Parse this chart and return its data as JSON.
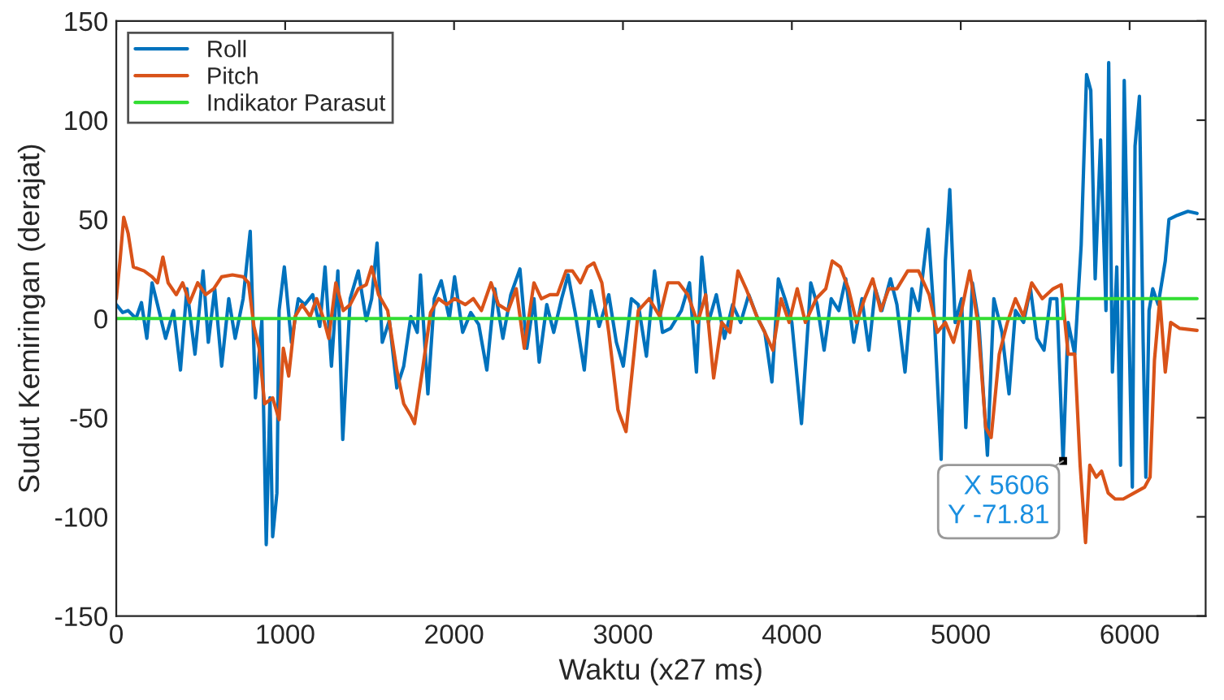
{
  "chart_data": {
    "type": "line",
    "xlabel": "Waktu (x27 ms)",
    "ylabel": "Sudut Kemiringan (derajat)",
    "xlim": [
      0,
      6450
    ],
    "ylim": [
      -150,
      150
    ],
    "xticks": [
      0,
      1000,
      2000,
      3000,
      4000,
      5000,
      6000
    ],
    "yticks": [
      -150,
      -100,
      -50,
      0,
      50,
      100,
      150
    ],
    "grid": false,
    "legend": "top left",
    "marker": "none",
    "line_style": "solid",
    "series": [
      {
        "name": "Roll",
        "color": "#0072bd",
        "x": [
          0,
          38,
          70,
          117,
          149,
          181,
          212,
          244,
          292,
          339,
          380,
          418,
          466,
          514,
          545,
          583,
          624,
          666,
          704,
          751,
          793,
          824,
          862,
          888,
          910,
          926,
          951,
          964,
          995,
          1037,
          1078,
          1116,
          1163,
          1205,
          1236,
          1274,
          1312,
          1341,
          1385,
          1433,
          1480,
          1512,
          1544,
          1575,
          1617,
          1661,
          1702,
          1744,
          1782,
          1801,
          1845,
          1883,
          1924,
          1972,
          2003,
          2051,
          2099,
          2146,
          2194,
          2241,
          2289,
          2336,
          2390,
          2431,
          2473,
          2504,
          2549,
          2590,
          2637,
          2675,
          2717,
          2771,
          2812,
          2859,
          2916,
          2961,
          3002,
          3050,
          3091,
          3139,
          3187,
          3234,
          3282,
          3346,
          3394,
          3435,
          3467,
          3506,
          3553,
          3601,
          3649,
          3697,
          3745,
          3793,
          3840,
          3882,
          3920,
          3959,
          4000,
          4057,
          4112,
          4150,
          4191,
          4233,
          4278,
          4319,
          4367,
          4415,
          4456,
          4494,
          4533,
          4584,
          4622,
          4670,
          4711,
          4750,
          4807,
          4845,
          4884,
          4909,
          4935,
          4967,
          5005,
          5030,
          5069,
          5107,
          5158,
          5196,
          5244,
          5286,
          5324,
          5372,
          5413,
          5451,
          5493,
          5531,
          5569,
          5606,
          5636,
          5675,
          5713,
          5745,
          5770,
          5796,
          5828,
          5860,
          5876,
          5898,
          5924,
          5946,
          5968,
          5994,
          6016,
          6032,
          6058,
          6080,
          6096,
          6115,
          6137,
          6169,
          6211,
          6233,
          6281,
          6345,
          6399
        ],
        "values": [
          7,
          3,
          4,
          0,
          8,
          -10,
          18,
          7,
          -10,
          4,
          -26,
          15,
          -18,
          24,
          -12,
          15,
          -24,
          10,
          -10,
          10,
          44,
          -40,
          -1,
          -114,
          -40,
          -110,
          -88,
          4,
          26,
          -12,
          10,
          7,
          12,
          -4,
          26,
          -24,
          24,
          -61,
          10,
          24,
          -1,
          10,
          38,
          -12,
          -1,
          -35,
          -24,
          1,
          -7,
          22,
          -38,
          10,
          19,
          0,
          21,
          -7,
          3,
          -3,
          -26,
          15,
          -10,
          12,
          25,
          -15,
          10,
          -22,
          7,
          -7,
          10,
          22,
          3,
          -26,
          14,
          -4,
          12,
          -12,
          -24,
          10,
          7,
          -19,
          24,
          -7,
          -5,
          4,
          18,
          -27,
          31,
          -2,
          12,
          -10,
          7,
          -2,
          12,
          1,
          -7,
          -32,
          20,
          10,
          -2,
          -53,
          18,
          7,
          -16,
          10,
          4,
          20,
          -12,
          10,
          -16,
          15,
          4,
          20,
          7,
          -27,
          15,
          4,
          45,
          -2,
          -71,
          29,
          65,
          -2,
          10,
          -55,
          18,
          -2,
          -69,
          10,
          -7,
          -38,
          4,
          -2,
          15,
          -10,
          -16,
          10,
          10,
          -71.81,
          -2,
          -18,
          37,
          123,
          115,
          20,
          90,
          4,
          129,
          -27,
          26,
          -74,
          120,
          4,
          -85,
          87,
          112,
          -12,
          -80,
          4,
          15,
          7,
          29,
          50,
          52,
          54,
          53
        ]
      },
      {
        "name": "Pitch",
        "color": "#d95319",
        "x": [
          0,
          22,
          44,
          70,
          101,
          165,
          212,
          244,
          276,
          307,
          355,
          393,
          434,
          482,
          529,
          577,
          624,
          688,
          751,
          783,
          815,
          846,
          878,
          926,
          964,
          989,
          1021,
          1059,
          1100,
          1148,
          1186,
          1227,
          1258,
          1300,
          1344,
          1385,
          1433,
          1480,
          1512,
          1553,
          1607,
          1661,
          1702,
          1744,
          1766,
          1813,
          1861,
          1908,
          1956,
          2003,
          2067,
          2114,
          2162,
          2219,
          2263,
          2320,
          2368,
          2416,
          2473,
          2517,
          2568,
          2612,
          2663,
          2701,
          2748,
          2790,
          2828,
          2875,
          2916,
          2970,
          3018,
          3065,
          3091,
          3155,
          3218,
          3266,
          3330,
          3384,
          3442,
          3490,
          3537,
          3585,
          3633,
          3681,
          3729,
          3793,
          3840,
          3888,
          3936,
          3984,
          4032,
          4080,
          4144,
          4201,
          4239,
          4287,
          4335,
          4383,
          4431,
          4479,
          4526,
          4574,
          4622,
          4686,
          4750,
          4813,
          4861,
          4909,
          4957,
          5005,
          5053,
          5101,
          5148,
          5180,
          5228,
          5276,
          5324,
          5372,
          5420,
          5483,
          5547,
          5595,
          5636,
          5675,
          5707,
          5739,
          5764,
          5802,
          5834,
          5873,
          5914,
          5962,
          6026,
          6089,
          6121,
          6147,
          6179,
          6211,
          6243,
          6297,
          6399
        ],
        "values": [
          10,
          29,
          51,
          43,
          26,
          24,
          21,
          18,
          31,
          18,
          12,
          18,
          8,
          18,
          12,
          15,
          21,
          22,
          21,
          18,
          -4,
          -15,
          -43,
          -40,
          -51,
          -15,
          -29,
          1,
          7,
          1,
          10,
          0,
          -10,
          18,
          4,
          7,
          15,
          17,
          26,
          12,
          4,
          -26,
          -43,
          -49,
          -53,
          -26,
          3,
          10,
          7,
          10,
          7,
          10,
          4,
          18,
          7,
          4,
          15,
          -15,
          18,
          10,
          12,
          12,
          24,
          24,
          18,
          26,
          28,
          18,
          -7,
          -46,
          -57,
          -18,
          4,
          10,
          1,
          18,
          18,
          12,
          -2,
          12,
          -30,
          -2,
          -7,
          24,
          15,
          1,
          -7,
          -16,
          10,
          -2,
          15,
          -2,
          10,
          15,
          29,
          26,
          15,
          -2,
          10,
          20,
          4,
          15,
          15,
          24,
          24,
          12,
          -7,
          -2,
          -12,
          4,
          24,
          -2,
          -55,
          -60,
          -18,
          -2,
          10,
          1,
          18,
          10,
          15,
          17,
          -18,
          -18,
          -74,
          -113,
          -74,
          -80,
          -77,
          -88,
          -91,
          -91,
          -88,
          -85,
          -80,
          -21,
          10,
          -27,
          -2,
          -5,
          -6
        ]
      },
      {
        "name": "Indikator Parasut",
        "color": "#33dd33",
        "x": [
          0,
          5606,
          5606,
          6399
        ],
        "values": [
          0,
          0,
          10,
          10
        ]
      }
    ],
    "annotations": [
      {
        "text": "X 5606\nY -71.81",
        "x": 5606,
        "y": -71.81
      }
    ]
  }
}
